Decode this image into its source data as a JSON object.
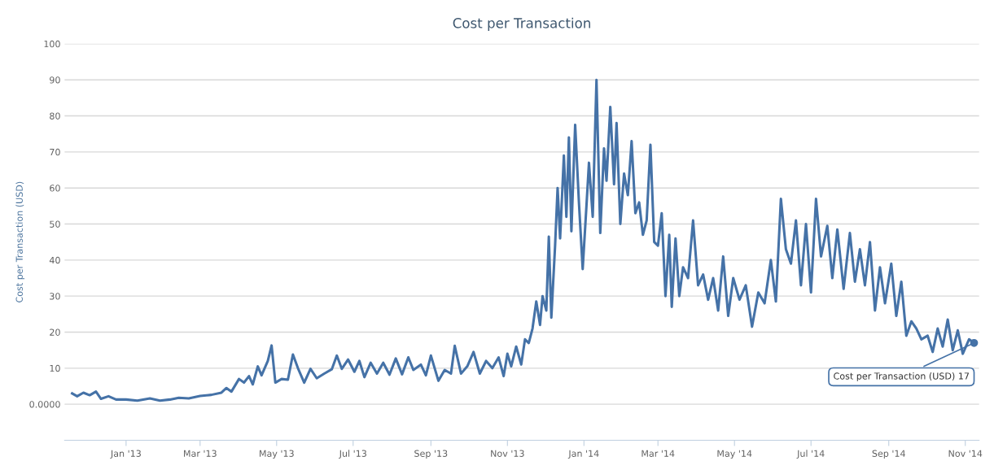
{
  "chart_data": {
    "type": "line",
    "title": "Cost per Transaction",
    "ylabel": "Cost per Transaction (USD)",
    "x": [
      "2012-11-19",
      "2012-11-23",
      "2012-11-28",
      "2012-12-03",
      "2012-12-08",
      "2012-12-12",
      "2012-12-18",
      "2012-12-24",
      "2013-01-01",
      "2013-01-10",
      "2013-01-20",
      "2013-01-28",
      "2013-02-05",
      "2013-02-12",
      "2013-02-20",
      "2013-03-01",
      "2013-03-10",
      "2013-03-18",
      "2013-03-22",
      "2013-03-26",
      "2013-04-01",
      "2013-04-05",
      "2013-04-09",
      "2013-04-12",
      "2013-04-16",
      "2013-04-19",
      "2013-04-24",
      "2013-04-27",
      "2013-04-30",
      "2013-05-05",
      "2013-05-10",
      "2013-05-14",
      "2013-05-18",
      "2013-05-23",
      "2013-05-28",
      "2013-06-02",
      "2013-06-08",
      "2013-06-14",
      "2013-06-18",
      "2013-06-22",
      "2013-06-27",
      "2013-07-02",
      "2013-07-06",
      "2013-07-10",
      "2013-07-15",
      "2013-07-20",
      "2013-07-25",
      "2013-07-30",
      "2013-08-04",
      "2013-08-09",
      "2013-08-14",
      "2013-08-18",
      "2013-08-24",
      "2013-08-28",
      "2013-09-01",
      "2013-09-07",
      "2013-09-12",
      "2013-09-17",
      "2013-09-20",
      "2013-09-25",
      "2013-09-30",
      "2013-10-05",
      "2013-10-10",
      "2013-10-15",
      "2013-10-20",
      "2013-10-25",
      "2013-10-29",
      "2013-11-01",
      "2013-11-04",
      "2013-11-08",
      "2013-11-12",
      "2013-11-15",
      "2013-11-18",
      "2013-11-21",
      "2013-11-24",
      "2013-11-27",
      "2013-11-29",
      "2013-12-02",
      "2013-12-04",
      "2013-12-06",
      "2013-12-09",
      "2013-12-11",
      "2013-12-13",
      "2013-12-16",
      "2013-12-18",
      "2013-12-20",
      "2013-12-22",
      "2013-12-25",
      "2013-12-28",
      "2013-12-31",
      "2014-01-03",
      "2014-01-05",
      "2014-01-08",
      "2014-01-11",
      "2014-01-14",
      "2014-01-17",
      "2014-01-19",
      "2014-01-22",
      "2014-01-25",
      "2014-01-27",
      "2014-01-30",
      "2014-02-02",
      "2014-02-05",
      "2014-02-08",
      "2014-02-11",
      "2014-02-14",
      "2014-02-17",
      "2014-02-20",
      "2014-02-23",
      "2014-02-26",
      "2014-03-01",
      "2014-03-04",
      "2014-03-07",
      "2014-03-10",
      "2014-03-12",
      "2014-03-15",
      "2014-03-18",
      "2014-03-21",
      "2014-03-25",
      "2014-03-29",
      "2014-04-02",
      "2014-04-06",
      "2014-04-10",
      "2014-04-14",
      "2014-04-18",
      "2014-04-22",
      "2014-04-26",
      "2014-04-30",
      "2014-05-05",
      "2014-05-10",
      "2014-05-15",
      "2014-05-20",
      "2014-05-25",
      "2014-05-30",
      "2014-06-03",
      "2014-06-07",
      "2014-06-11",
      "2014-06-15",
      "2014-06-19",
      "2014-06-23",
      "2014-06-27",
      "2014-07-01",
      "2014-07-05",
      "2014-07-09",
      "2014-07-14",
      "2014-07-18",
      "2014-07-22",
      "2014-07-27",
      "2014-08-01",
      "2014-08-05",
      "2014-08-09",
      "2014-08-13",
      "2014-08-17",
      "2014-08-21",
      "2014-08-25",
      "2014-08-29",
      "2014-09-03",
      "2014-09-07",
      "2014-09-11",
      "2014-09-15",
      "2014-09-19",
      "2014-09-23",
      "2014-09-27",
      "2014-10-02",
      "2014-10-06",
      "2014-10-10",
      "2014-10-14",
      "2014-10-18",
      "2014-10-22",
      "2014-10-26",
      "2014-10-30",
      "2014-11-04",
      "2014-11-08"
    ],
    "series": [
      {
        "color": "#4572a7",
        "values": [
          3,
          2.2,
          3.2,
          2.5,
          3.5,
          1.5,
          2.2,
          1.3,
          1.3,
          1.0,
          1.6,
          1.0,
          1.3,
          1.8,
          1.6,
          2.3,
          2.6,
          3.2,
          4.5,
          3.5,
          7,
          6,
          7.8,
          5.5,
          10.5,
          8,
          12,
          16.3,
          6,
          7,
          6.8,
          13.8,
          10,
          6,
          9.8,
          7.2,
          8.5,
          9.7,
          13.5,
          9.8,
          12.4,
          9,
          12,
          7.5,
          11.5,
          8.5,
          11.5,
          8.2,
          12.7,
          8.3,
          13,
          9.5,
          11,
          8,
          13.5,
          6.5,
          9.5,
          8.5,
          16.2,
          8.5,
          10.5,
          14.5,
          8.5,
          12,
          10,
          13,
          7.8,
          14,
          10.5,
          16,
          11,
          18,
          17,
          21,
          28.5,
          22,
          30,
          26,
          46.5,
          24,
          44,
          60,
          46,
          69,
          52,
          74,
          48,
          77.5,
          56,
          37.5,
          55,
          67,
          52,
          90,
          47.5,
          71,
          62,
          82.5,
          61,
          78,
          50,
          64,
          58,
          73,
          53,
          56,
          47,
          51,
          72,
          45,
          44,
          53,
          30,
          47,
          27,
          46,
          30,
          38,
          35,
          51,
          33,
          36,
          29,
          35,
          26,
          41,
          24.5,
          35,
          29,
          33,
          21.5,
          31,
          28,
          40,
          28.5,
          57,
          43,
          39,
          51,
          33,
          50,
          31,
          57,
          41,
          49.5,
          35,
          48.5,
          32,
          47.5,
          34,
          43,
          33,
          45,
          26,
          38,
          28,
          39,
          24.5,
          34,
          19,
          23,
          21,
          18,
          19,
          14.5,
          21,
          16,
          23.5,
          15,
          20.5,
          14,
          18,
          17
        ]
      }
    ],
    "xlim": [
      "2012-11-13",
      "2014-11-12"
    ],
    "xticks": [
      {
        "value": "2013-01-01",
        "label": "Jan '13"
      },
      {
        "value": "2013-03-01",
        "label": "Mar '13"
      },
      {
        "value": "2013-05-01",
        "label": "May '13"
      },
      {
        "value": "2013-07-01",
        "label": "Jul '13"
      },
      {
        "value": "2013-09-01",
        "label": "Sep '13"
      },
      {
        "value": "2013-11-01",
        "label": "Nov '13"
      },
      {
        "value": "2014-01-01",
        "label": "Jan '14"
      },
      {
        "value": "2014-03-01",
        "label": "Mar '14"
      },
      {
        "value": "2014-05-01",
        "label": "May '14"
      },
      {
        "value": "2014-07-01",
        "label": "Jul '14"
      },
      {
        "value": "2014-09-01",
        "label": "Sep '14"
      },
      {
        "value": "2014-11-01",
        "label": "Nov '14"
      }
    ],
    "ylim": [
      -10,
      100
    ],
    "yticks": [
      {
        "value": 0,
        "label": "0.0000"
      },
      10,
      20,
      30,
      40,
      50,
      60,
      70,
      80,
      90,
      100
    ],
    "grid": "y",
    "legend": false,
    "marker": "none",
    "line_style": "solid",
    "annotations": [
      {
        "text": "Cost per Transaction (USD) 17",
        "x": "2014-11-08",
        "y": 17
      }
    ]
  }
}
